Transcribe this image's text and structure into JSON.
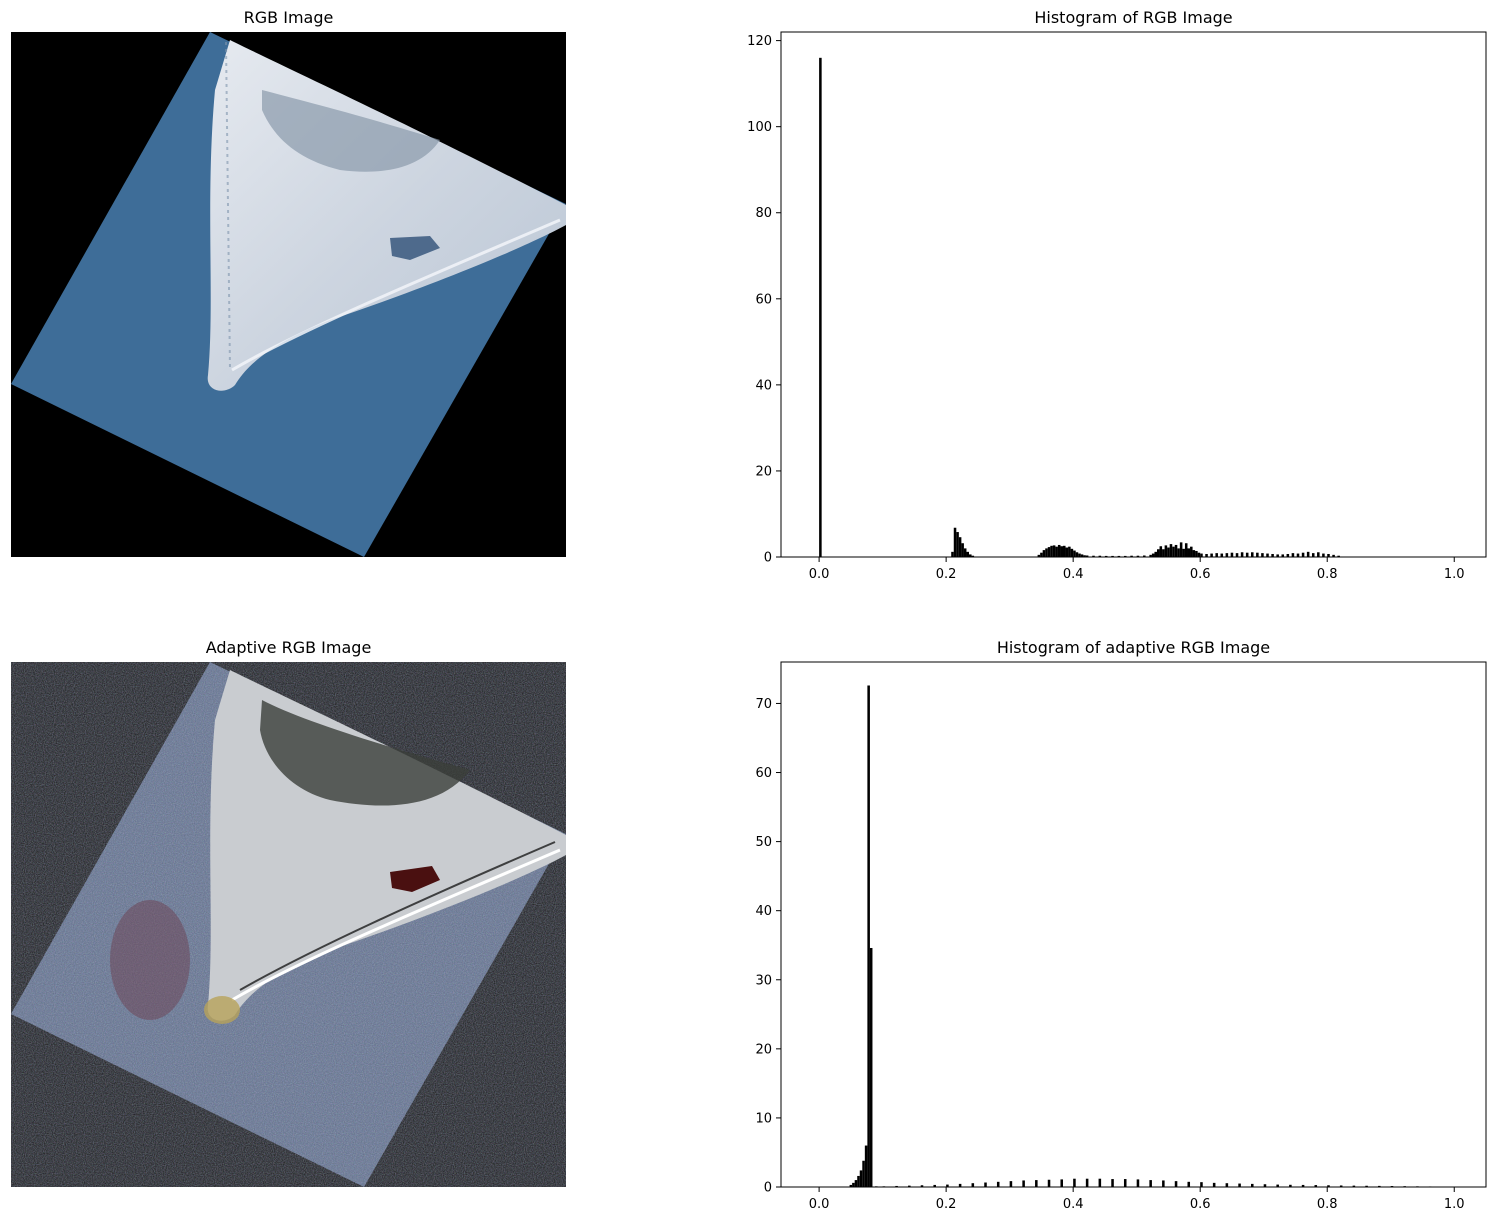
{
  "panels": {
    "rgb_image_title": "RGB Image",
    "adaptive_image_title": "Adaptive RGB Image"
  },
  "colors": {
    "background": "#000000",
    "adaptive_background": "#141414",
    "water": "#3e6d98",
    "sand": "#d7dde6",
    "bars": "#000000"
  },
  "chart_data": [
    {
      "type": "bar",
      "title": "Histogram of RGB Image",
      "xlabel": "",
      "ylabel": "",
      "xlim": [
        -0.06,
        1.05
      ],
      "ylim": [
        0,
        122
      ],
      "xticks": [
        0.0,
        0.2,
        0.4,
        0.6,
        0.8,
        1.0
      ],
      "xtick_labels": [
        "0.0",
        "0.2",
        "0.4",
        "0.6",
        "0.8",
        "1.0"
      ],
      "yticks": [
        0,
        20,
        40,
        60,
        80,
        100,
        120
      ],
      "ytick_labels": [
        "0",
        "20",
        "40",
        "60",
        "80",
        "100",
        "120"
      ],
      "bin_width": 0.004,
      "bins": [
        [
          0.0,
          116
        ],
        [
          0.208,
          1.2
        ],
        [
          0.212,
          6.8
        ],
        [
          0.216,
          5.8
        ],
        [
          0.22,
          4.6
        ],
        [
          0.224,
          3.2
        ],
        [
          0.228,
          2.0
        ],
        [
          0.232,
          1.2
        ],
        [
          0.236,
          0.6
        ],
        [
          0.24,
          0.3
        ],
        [
          0.344,
          0.5
        ],
        [
          0.348,
          1.0
        ],
        [
          0.352,
          1.6
        ],
        [
          0.356,
          2.0
        ],
        [
          0.36,
          2.3
        ],
        [
          0.364,
          2.6
        ],
        [
          0.368,
          2.7
        ],
        [
          0.372,
          2.4
        ],
        [
          0.376,
          2.8
        ],
        [
          0.38,
          2.5
        ],
        [
          0.384,
          2.6
        ],
        [
          0.388,
          2.2
        ],
        [
          0.392,
          2.4
        ],
        [
          0.396,
          1.9
        ],
        [
          0.4,
          1.5
        ],
        [
          0.404,
          1.1
        ],
        [
          0.408,
          0.8
        ],
        [
          0.412,
          0.6
        ],
        [
          0.416,
          0.4
        ],
        [
          0.42,
          0.35
        ],
        [
          0.43,
          0.3
        ],
        [
          0.44,
          0.3
        ],
        [
          0.45,
          0.25
        ],
        [
          0.46,
          0.25
        ],
        [
          0.47,
          0.25
        ],
        [
          0.48,
          0.25
        ],
        [
          0.49,
          0.3
        ],
        [
          0.5,
          0.3
        ],
        [
          0.51,
          0.35
        ],
        [
          0.52,
          0.5
        ],
        [
          0.524,
          0.8
        ],
        [
          0.528,
          1.2
        ],
        [
          0.532,
          1.8
        ],
        [
          0.536,
          2.5
        ],
        [
          0.54,
          1.8
        ],
        [
          0.544,
          2.7
        ],
        [
          0.548,
          2.2
        ],
        [
          0.552,
          3.0
        ],
        [
          0.556,
          2.4
        ],
        [
          0.56,
          2.8
        ],
        [
          0.564,
          2.0
        ],
        [
          0.568,
          3.4
        ],
        [
          0.572,
          1.9
        ],
        [
          0.576,
          3.2
        ],
        [
          0.58,
          2.0
        ],
        [
          0.584,
          2.4
        ],
        [
          0.588,
          1.6
        ],
        [
          0.592,
          1.4
        ],
        [
          0.596,
          1.0
        ],
        [
          0.6,
          0.8
        ],
        [
          0.608,
          0.7
        ],
        [
          0.616,
          0.8
        ],
        [
          0.624,
          0.9
        ],
        [
          0.632,
          0.8
        ],
        [
          0.64,
          0.9
        ],
        [
          0.648,
          1.0
        ],
        [
          0.656,
          0.9
        ],
        [
          0.664,
          1.1
        ],
        [
          0.672,
          1.0
        ],
        [
          0.68,
          1.1
        ],
        [
          0.688,
          1.0
        ],
        [
          0.696,
          0.9
        ],
        [
          0.704,
          0.8
        ],
        [
          0.712,
          0.7
        ],
        [
          0.72,
          0.6
        ],
        [
          0.728,
          0.6
        ],
        [
          0.736,
          0.7
        ],
        [
          0.744,
          0.9
        ],
        [
          0.752,
          0.8
        ],
        [
          0.76,
          1.0
        ],
        [
          0.768,
          1.2
        ],
        [
          0.776,
          0.9
        ],
        [
          0.784,
          1.1
        ],
        [
          0.792,
          0.8
        ],
        [
          0.8,
          0.7
        ],
        [
          0.808,
          0.5
        ],
        [
          0.816,
          0.3
        ]
      ]
    },
    {
      "type": "bar",
      "title": "Histogram of adaptive RGB Image",
      "xlabel": "",
      "ylabel": "",
      "xlim": [
        -0.06,
        1.05
      ],
      "ylim": [
        0,
        76
      ],
      "xticks": [
        0.0,
        0.2,
        0.4,
        0.6,
        0.8,
        1.0
      ],
      "xtick_labels": [
        "0.0",
        "0.2",
        "0.4",
        "0.6",
        "0.8",
        "1.0"
      ],
      "yticks": [
        0,
        10,
        20,
        30,
        40,
        50,
        60,
        70
      ],
      "ytick_labels": [
        "0",
        "10",
        "20",
        "30",
        "40",
        "50",
        "60",
        "70"
      ],
      "bin_width": 0.004,
      "bins": [
        [
          0.048,
          0.3
        ],
        [
          0.052,
          0.6
        ],
        [
          0.056,
          1.0
        ],
        [
          0.06,
          1.6
        ],
        [
          0.064,
          2.4
        ],
        [
          0.068,
          3.8
        ],
        [
          0.072,
          6.0
        ],
        [
          0.076,
          72.6
        ],
        [
          0.08,
          34.6
        ],
        [
          0.088,
          0.1
        ],
        [
          0.1,
          0.1
        ],
        [
          0.12,
          0.15
        ],
        [
          0.14,
          0.2
        ],
        [
          0.16,
          0.25
        ],
        [
          0.18,
          0.3
        ],
        [
          0.2,
          0.35
        ],
        [
          0.22,
          0.45
        ],
        [
          0.24,
          0.55
        ],
        [
          0.26,
          0.65
        ],
        [
          0.28,
          0.75
        ],
        [
          0.3,
          0.85
        ],
        [
          0.32,
          0.95
        ],
        [
          0.34,
          1.0
        ],
        [
          0.36,
          1.05
        ],
        [
          0.38,
          1.1
        ],
        [
          0.4,
          1.2
        ],
        [
          0.42,
          1.2
        ],
        [
          0.44,
          1.2
        ],
        [
          0.46,
          1.15
        ],
        [
          0.48,
          1.15
        ],
        [
          0.5,
          1.1
        ],
        [
          0.52,
          1.0
        ],
        [
          0.54,
          0.95
        ],
        [
          0.56,
          0.85
        ],
        [
          0.58,
          0.75
        ],
        [
          0.6,
          0.7
        ],
        [
          0.62,
          0.6
        ],
        [
          0.64,
          0.55
        ],
        [
          0.66,
          0.5
        ],
        [
          0.68,
          0.45
        ],
        [
          0.7,
          0.4
        ],
        [
          0.72,
          0.35
        ],
        [
          0.74,
          0.32
        ],
        [
          0.76,
          0.3
        ],
        [
          0.78,
          0.28
        ],
        [
          0.8,
          0.25
        ],
        [
          0.82,
          0.22
        ],
        [
          0.84,
          0.2
        ],
        [
          0.86,
          0.18
        ],
        [
          0.88,
          0.16
        ],
        [
          0.9,
          0.14
        ],
        [
          0.92,
          0.12
        ],
        [
          0.94,
          0.1
        ],
        [
          0.96,
          0.08
        ],
        [
          0.98,
          0.06
        ],
        [
          0.996,
          0.05
        ]
      ]
    }
  ]
}
